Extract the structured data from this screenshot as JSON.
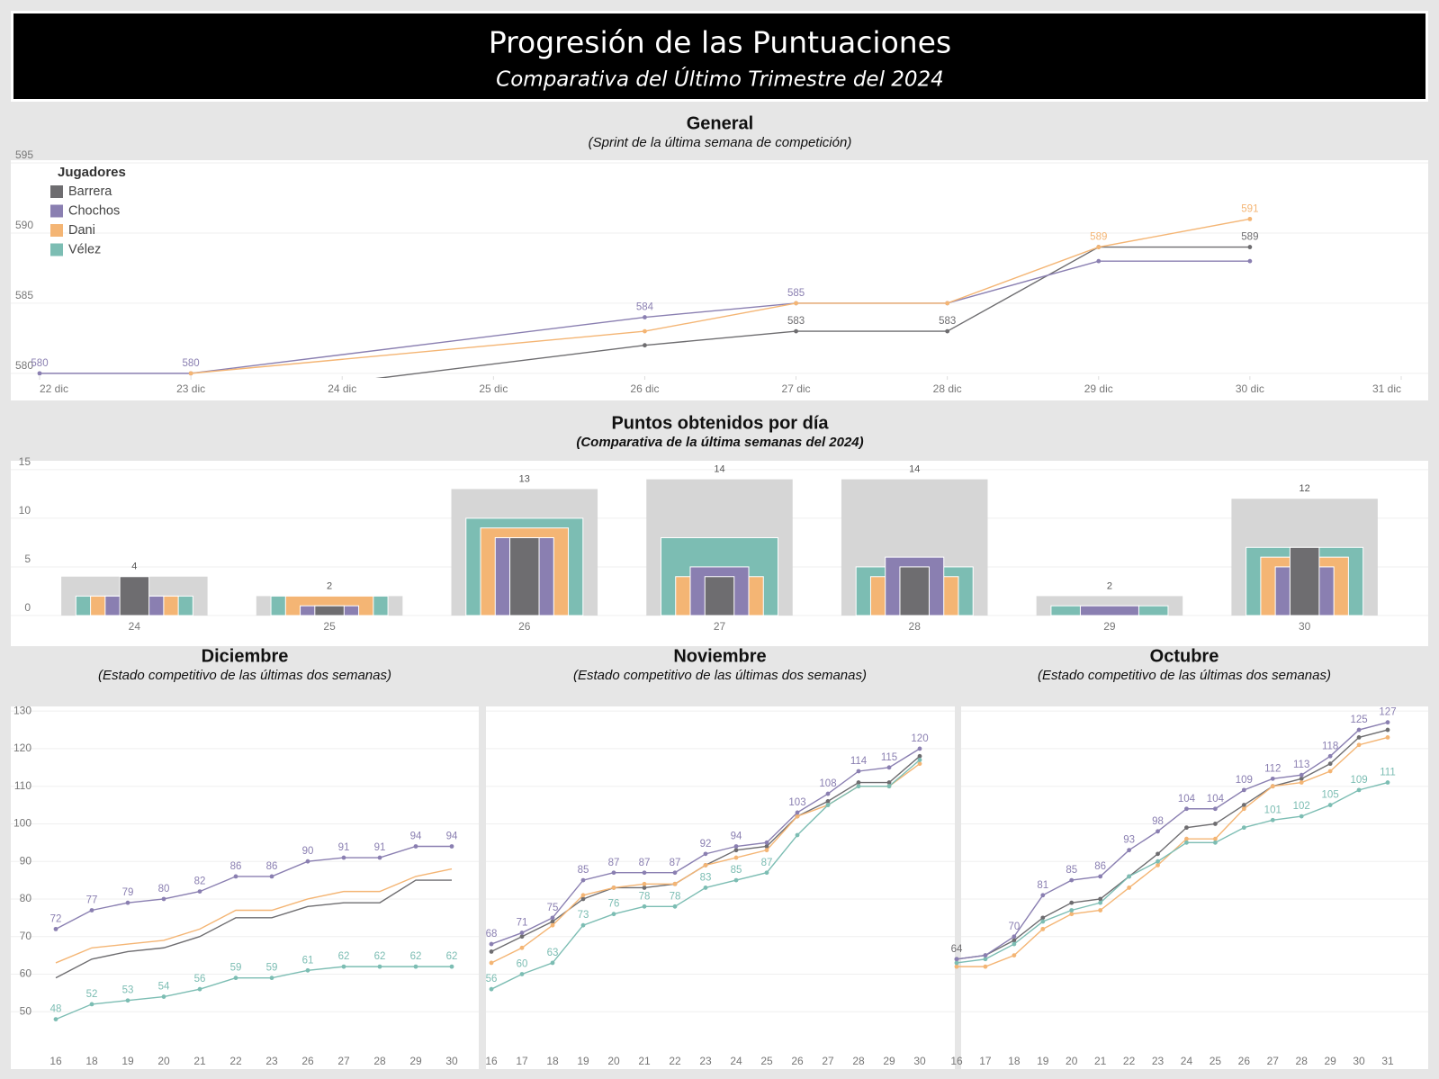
{
  "header": {
    "title": "Progresión de las Puntuaciones",
    "subtitle": "Comparativa del Último Trimestre del 2024"
  },
  "chart_data": [
    {
      "type": "line",
      "title": "General",
      "subtitle": "(Sprint de la última semana de competición)",
      "legend_title": "Jugadores",
      "legend": "top-left",
      "grid": true,
      "xlim": [
        22,
        31
      ],
      "xticks": [
        {
          "value": 22,
          "label": "22 dic"
        },
        {
          "value": 23,
          "label": "23 dic"
        },
        {
          "value": 24,
          "label": "24 dic"
        },
        {
          "value": 25,
          "label": "25 dic"
        },
        {
          "value": 26,
          "label": "26 dic"
        },
        {
          "value": 27,
          "label": "27 dic"
        },
        {
          "value": 28,
          "label": "28 dic"
        },
        {
          "value": 29,
          "label": "29 dic"
        },
        {
          "value": 30,
          "label": "30 dic"
        },
        {
          "value": 31,
          "label": "31 dic"
        }
      ],
      "ylim": [
        579.8,
        595
      ],
      "yticks": [
        580,
        585,
        590,
        595
      ],
      "series": [
        {
          "name": "Barrera",
          "color": "#6e6d70",
          "x": [
            23,
            26,
            27,
            28,
            29,
            30
          ],
          "values": [
            578,
            582,
            583,
            583,
            589,
            589
          ],
          "value_labels": [
            null,
            null,
            "583",
            "583",
            null,
            "589"
          ]
        },
        {
          "name": "Chochos",
          "color": "#8a7fb1",
          "x": [
            22,
            23,
            26,
            27,
            28,
            29,
            30
          ],
          "values": [
            580,
            580,
            584,
            585,
            585,
            588,
            588
          ],
          "value_labels": [
            "580",
            "580",
            "584",
            "585",
            null,
            null,
            null
          ]
        },
        {
          "name": "Dani",
          "color": "#f4b574",
          "x": [
            23,
            26,
            27,
            28,
            29,
            30
          ],
          "values": [
            580,
            583,
            585,
            585,
            589,
            591
          ],
          "value_labels": [
            null,
            null,
            null,
            null,
            "589",
            "591"
          ]
        },
        {
          "name": "Vélez",
          "color": "#7cbdb3",
          "x": [],
          "values": [],
          "value_labels": []
        }
      ]
    },
    {
      "type": "bar",
      "title": "Puntos obtenidos por día",
      "subtitle": "(Comparativa de la última semanas del 2024)",
      "grid": true,
      "categories": [
        "24",
        "25",
        "26",
        "27",
        "28",
        "29",
        "30"
      ],
      "ylim": [
        0,
        16
      ],
      "yticks": [
        0,
        5,
        10,
        15
      ],
      "totals": {
        "color": "#d6d6d6",
        "values": [
          4,
          2,
          13,
          14,
          14,
          2,
          12
        ]
      },
      "series": [
        {
          "name": "Vélez",
          "color": "#7cbdb3",
          "values": [
            2,
            2,
            10,
            8,
            5,
            1,
            7
          ]
        },
        {
          "name": "Dani",
          "color": "#f4b574",
          "values": [
            2,
            2,
            9,
            4,
            4,
            0,
            6
          ]
        },
        {
          "name": "Chochos",
          "color": "#8a7fb1",
          "values": [
            2,
            1,
            8,
            5,
            6,
            1,
            5
          ]
        },
        {
          "name": "Barrera",
          "color": "#6e6d70",
          "values": [
            4,
            1,
            8,
            4,
            5,
            0,
            7
          ]
        }
      ]
    },
    {
      "type": "line",
      "title": "Diciembre",
      "subtitle": "(Estado competitivo de las últimas dos semanas)",
      "grid": true,
      "categories": [
        "16",
        "18",
        "19",
        "20",
        "21",
        "22",
        "23",
        "26",
        "27",
        "28",
        "29",
        "30"
      ],
      "ylim": [
        40,
        131
      ],
      "yticks": [
        50,
        60,
        70,
        80,
        90,
        100,
        110,
        120,
        130
      ],
      "series": [
        {
          "name": "Barrera",
          "color": "#6e6d70",
          "markers": false,
          "values": [
            59,
            64,
            66,
            67,
            70,
            75,
            75,
            78,
            79,
            79,
            85,
            85
          ]
        },
        {
          "name": "Dani",
          "color": "#f4b574",
          "markers": false,
          "values": [
            63,
            67,
            68,
            69,
            72,
            77,
            77,
            80,
            82,
            82,
            86,
            88
          ]
        },
        {
          "name": "Chochos",
          "color": "#8a7fb1",
          "values": [
            72,
            77,
            79,
            80,
            82,
            86,
            86,
            90,
            91,
            91,
            94,
            94
          ],
          "value_labels": [
            "72",
            "77",
            "79",
            "80",
            "82",
            "86",
            "86",
            "90",
            "91",
            "91",
            "94",
            "94"
          ]
        },
        {
          "name": "Vélez",
          "color": "#7cbdb3",
          "values": [
            48,
            52,
            53,
            54,
            56,
            59,
            59,
            61,
            62,
            62,
            62,
            62
          ],
          "value_labels": [
            "48",
            "52",
            "53",
            "54",
            "56",
            "59",
            "59",
            "61",
            "62",
            "62",
            "62",
            "62"
          ]
        }
      ]
    },
    {
      "type": "line",
      "title": "Noviembre",
      "subtitle": "(Estado competitivo de las últimas dos semanas)",
      "grid": true,
      "ytick_labels": false,
      "categories": [
        "16",
        "17",
        "18",
        "19",
        "20",
        "21",
        "22",
        "23",
        "24",
        "25",
        "26",
        "27",
        "28",
        "29",
        "30"
      ],
      "ylim": [
        40,
        131
      ],
      "yticks": [
        50,
        60,
        70,
        80,
        90,
        100,
        110,
        120,
        130
      ],
      "series": [
        {
          "name": "Barrera",
          "color": "#6e6d70",
          "values": [
            66,
            70,
            74,
            80,
            83,
            83,
            84,
            89,
            93,
            94,
            102,
            106,
            111,
            111,
            118
          ]
        },
        {
          "name": "Dani",
          "color": "#f4b574",
          "values": [
            63,
            67,
            73,
            81,
            83,
            84,
            84,
            89,
            91,
            93,
            102,
            105,
            110,
            110,
            116
          ]
        },
        {
          "name": "Vélez",
          "color": "#7cbdb3",
          "values": [
            56,
            60,
            63,
            73,
            76,
            78,
            78,
            83,
            85,
            87,
            97,
            105,
            110,
            110,
            117
          ],
          "value_labels": [
            "56",
            "60",
            "63",
            "73",
            "76",
            "78",
            "78",
            "83",
            "85",
            "87",
            null,
            null,
            null,
            null,
            null
          ]
        },
        {
          "name": "Chochos",
          "color": "#8a7fb1",
          "values": [
            68,
            71,
            75,
            85,
            87,
            87,
            87,
            92,
            94,
            95,
            103,
            108,
            114,
            115,
            120
          ],
          "value_labels": [
            "68",
            "71",
            "75",
            "85",
            "87",
            "87",
            "87",
            "92",
            "94",
            null,
            "103",
            "108",
            "114",
            "115",
            "120"
          ]
        }
      ]
    },
    {
      "type": "line",
      "title": "Octubre",
      "subtitle": "(Estado competitivo de las últimas dos semanas)",
      "grid": true,
      "ytick_labels": false,
      "categories": [
        "16",
        "17",
        "18",
        "19",
        "20",
        "21",
        "22",
        "23",
        "24",
        "25",
        "26",
        "27",
        "28",
        "29",
        "30",
        "31"
      ],
      "ylim": [
        40,
        131
      ],
      "yticks": [
        50,
        60,
        70,
        80,
        90,
        100,
        110,
        120,
        130
      ],
      "series": [
        {
          "name": "Barrera",
          "color": "#6e6d70",
          "values": [
            64,
            65,
            69,
            75,
            79,
            80,
            86,
            92,
            99,
            100,
            105,
            110,
            112,
            116,
            123,
            125
          ],
          "value_labels": [
            "64",
            null,
            null,
            null,
            null,
            null,
            null,
            null,
            null,
            null,
            null,
            null,
            null,
            null,
            null,
            null
          ]
        },
        {
          "name": "Dani",
          "color": "#f4b574",
          "values": [
            62,
            62,
            65,
            72,
            76,
            77,
            83,
            89,
            96,
            96,
            104,
            110,
            111,
            114,
            121,
            123
          ]
        },
        {
          "name": "Vélez",
          "color": "#7cbdb3",
          "values": [
            63,
            64,
            68,
            74,
            77,
            79,
            86,
            90,
            95,
            95,
            99,
            101,
            102,
            105,
            109,
            111
          ],
          "value_labels": [
            null,
            null,
            null,
            null,
            null,
            null,
            null,
            null,
            null,
            null,
            null,
            "101",
            "102",
            "105",
            "109",
            "111"
          ]
        },
        {
          "name": "Chochos",
          "color": "#8a7fb1",
          "values": [
            64,
            65,
            70,
            81,
            85,
            86,
            93,
            98,
            104,
            104,
            109,
            112,
            113,
            118,
            125,
            127
          ],
          "value_labels": [
            null,
            null,
            "70",
            "81",
            "85",
            "86",
            "93",
            "98",
            "104",
            "104",
            "109",
            "112",
            "113",
            "118",
            "125",
            "127"
          ]
        }
      ]
    }
  ]
}
